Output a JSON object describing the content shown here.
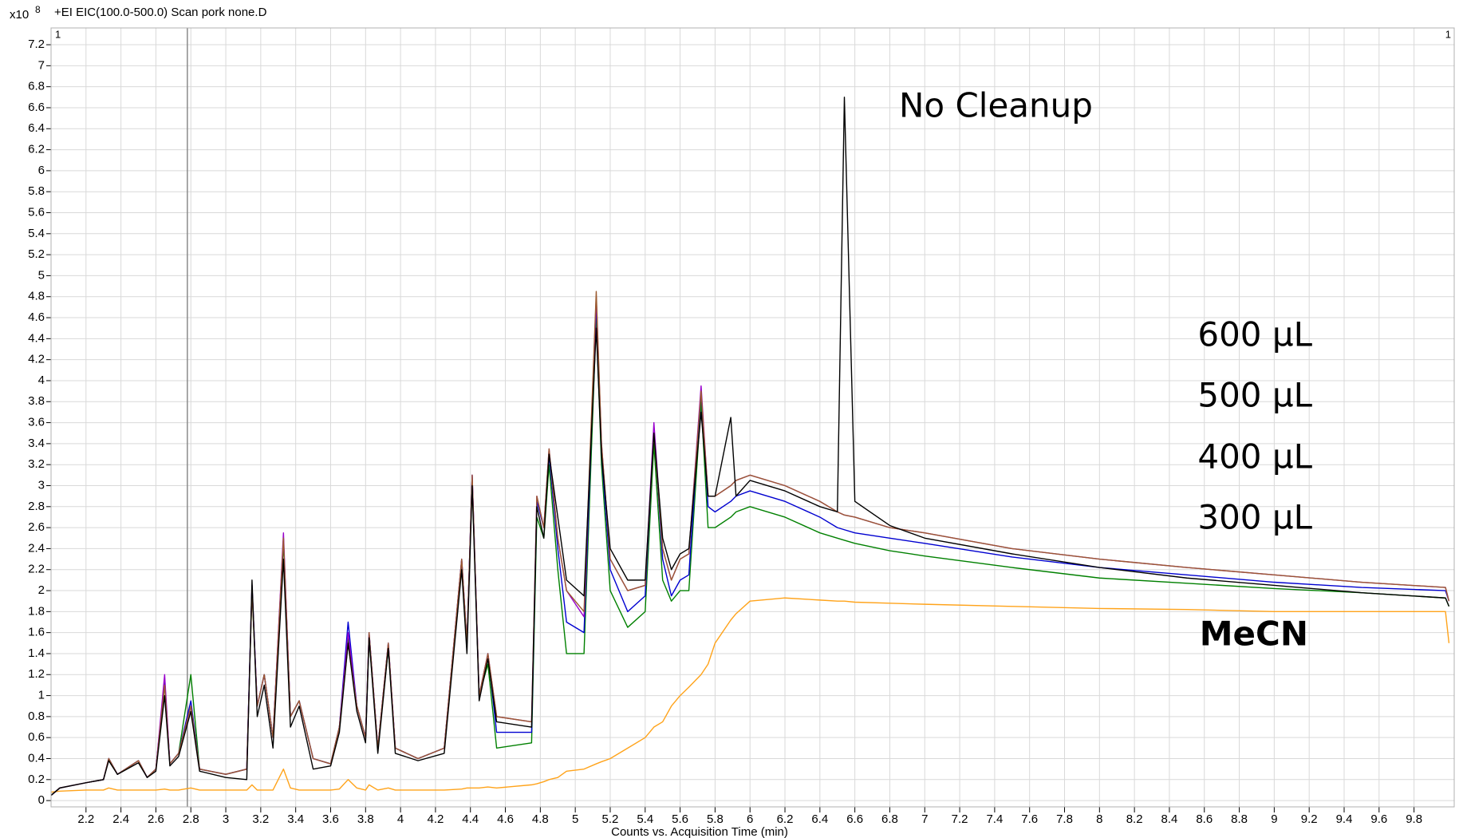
{
  "chart_data": {
    "type": "line",
    "title": "+EI EIC(100.0-500.0) Scan pork none.D",
    "y_multiplier": {
      "base": "x10",
      "exponent": 8
    },
    "pane_labels": [
      "1",
      "1"
    ],
    "x_label": "Counts vs. Acquisition Time (min)",
    "cursor_x": 2.78,
    "grid": true,
    "xlim": [
      2.0,
      10.03
    ],
    "ylim": [
      -0.06,
      7.36
    ],
    "xticks": [
      2.2,
      2.4,
      2.6,
      2.8,
      3,
      3.2,
      3.4,
      3.6,
      3.8,
      4,
      4.2,
      4.4,
      4.6,
      4.8,
      5,
      5.2,
      5.4,
      5.6,
      5.8,
      6,
      6.2,
      6.4,
      6.6,
      6.8,
      7,
      7.2,
      7.4,
      7.6,
      7.8,
      8,
      8.2,
      8.4,
      8.6,
      8.8,
      9,
      9.2,
      9.4,
      9.6,
      9.8
    ],
    "yticks": [
      0,
      0.2,
      0.4,
      0.6,
      0.8,
      1,
      1.2,
      1.4,
      1.6,
      1.8,
      2,
      2.2,
      2.4,
      2.6,
      2.8,
      3,
      3.2,
      3.4,
      3.6,
      3.8,
      4,
      4.2,
      4.4,
      4.6,
      4.8,
      5,
      5.2,
      5.4,
      5.6,
      5.8,
      6,
      6.2,
      6.4,
      6.6,
      6.8,
      7,
      7.2
    ],
    "x": [
      2.0,
      2.05,
      2.2,
      2.3,
      2.33,
      2.38,
      2.5,
      2.55,
      2.6,
      2.65,
      2.68,
      2.73,
      2.8,
      2.85,
      3.0,
      3.12,
      3.15,
      3.18,
      3.22,
      3.27,
      3.33,
      3.37,
      3.42,
      3.5,
      3.6,
      3.65,
      3.7,
      3.75,
      3.8,
      3.82,
      3.87,
      3.93,
      3.97,
      4.1,
      4.25,
      4.35,
      4.38,
      4.41,
      4.45,
      4.5,
      4.55,
      4.75,
      4.78,
      4.82,
      4.85,
      4.9,
      4.95,
      5.05,
      5.12,
      5.15,
      5.2,
      5.3,
      5.4,
      5.45,
      5.5,
      5.55,
      5.6,
      5.65,
      5.72,
      5.76,
      5.8,
      5.89,
      5.92,
      6.0,
      6.2,
      6.4,
      6.5,
      6.54,
      6.6,
      6.8,
      7.0,
      7.5,
      8.0,
      8.5,
      9.0,
      9.5,
      9.98,
      10.0
    ],
    "series": [
      {
        "name": "MeCN",
        "color": "#ffa31a",
        "label_color": "#f5b800",
        "values": [
          0.08,
          0.09,
          0.1,
          0.1,
          0.12,
          0.1,
          0.1,
          0.1,
          0.1,
          0.11,
          0.1,
          0.1,
          0.12,
          0.1,
          0.1,
          0.1,
          0.15,
          0.1,
          0.1,
          0.1,
          0.3,
          0.12,
          0.1,
          0.1,
          0.1,
          0.11,
          0.2,
          0.12,
          0.1,
          0.15,
          0.1,
          0.12,
          0.1,
          0.1,
          0.1,
          0.11,
          0.12,
          0.12,
          0.12,
          0.13,
          0.12,
          0.15,
          0.16,
          0.18,
          0.2,
          0.22,
          0.28,
          0.3,
          0.35,
          0.37,
          0.4,
          0.5,
          0.6,
          0.7,
          0.75,
          0.9,
          1.0,
          1.08,
          1.2,
          1.3,
          1.5,
          1.72,
          1.78,
          1.9,
          1.93,
          1.91,
          1.9,
          1.9,
          1.89,
          1.88,
          1.87,
          1.85,
          1.83,
          1.82,
          1.8,
          1.8,
          1.8,
          1.5
        ]
      },
      {
        "name": "300 µL",
        "color": "#008000",
        "label_color": "#138a13",
        "values": [
          0.05,
          0.12,
          0.17,
          0.2,
          0.4,
          0.25,
          0.38,
          0.22,
          0.3,
          1.1,
          0.35,
          0.45,
          1.2,
          0.3,
          0.25,
          0.3,
          2.0,
          0.9,
          1.2,
          0.6,
          2.45,
          0.8,
          0.95,
          0.4,
          0.35,
          0.7,
          1.55,
          0.9,
          0.6,
          1.55,
          0.5,
          1.45,
          0.5,
          0.4,
          0.5,
          2.25,
          1.5,
          3.05,
          1.0,
          1.3,
          0.5,
          0.55,
          2.7,
          2.5,
          3.2,
          2.2,
          1.4,
          1.4,
          4.6,
          3.2,
          2.0,
          1.65,
          1.8,
          3.4,
          2.1,
          1.9,
          2.0,
          2.0,
          3.8,
          2.6,
          2.6,
          2.7,
          2.75,
          2.8,
          2.7,
          2.55,
          2.5,
          2.48,
          2.45,
          2.38,
          2.33,
          2.22,
          2.12,
          2.07,
          2.02,
          1.98,
          1.93,
          1.85
        ]
      },
      {
        "name": "400 µL",
        "color": "#0000d0",
        "label_color": "#1f1fc8",
        "values": [
          0.05,
          0.12,
          0.17,
          0.2,
          0.4,
          0.25,
          0.38,
          0.22,
          0.3,
          1.15,
          0.35,
          0.45,
          0.95,
          0.3,
          0.25,
          0.3,
          2.05,
          0.9,
          1.2,
          0.6,
          2.5,
          0.8,
          0.95,
          0.4,
          0.35,
          0.7,
          1.7,
          0.9,
          0.6,
          1.6,
          0.5,
          1.5,
          0.5,
          0.4,
          0.5,
          2.3,
          1.5,
          3.1,
          1.0,
          1.4,
          0.65,
          0.65,
          2.85,
          2.6,
          3.3,
          2.4,
          1.7,
          1.6,
          4.75,
          3.3,
          2.2,
          1.8,
          1.95,
          3.55,
          2.3,
          1.95,
          2.1,
          2.15,
          3.9,
          2.8,
          2.75,
          2.85,
          2.9,
          2.95,
          2.85,
          2.7,
          2.6,
          2.58,
          2.55,
          2.5,
          2.45,
          2.32,
          2.22,
          2.15,
          2.08,
          2.03,
          2.0,
          1.9
        ]
      },
      {
        "name": "500 µL",
        "color": "#9900cc",
        "label_color": "#9a10c8",
        "values": [
          0.05,
          0.12,
          0.17,
          0.2,
          0.4,
          0.25,
          0.38,
          0.22,
          0.3,
          1.2,
          0.35,
          0.45,
          0.9,
          0.3,
          0.25,
          0.3,
          2.05,
          0.9,
          1.2,
          0.6,
          2.55,
          0.8,
          0.95,
          0.4,
          0.35,
          0.7,
          1.6,
          0.9,
          0.6,
          1.6,
          0.5,
          1.5,
          0.5,
          0.4,
          0.5,
          2.3,
          1.5,
          3.1,
          1.0,
          1.4,
          0.8,
          0.75,
          2.9,
          2.6,
          3.35,
          2.5,
          2.0,
          1.75,
          4.8,
          3.4,
          2.3,
          2.0,
          2.05,
          3.6,
          2.4,
          2.1,
          2.3,
          2.35,
          3.95,
          2.9,
          2.9,
          3.0,
          3.05,
          3.1,
          3.0,
          2.85,
          2.75,
          2.72,
          2.7,
          2.6,
          2.55,
          2.4,
          2.3,
          2.22,
          2.15,
          2.08,
          2.03,
          1.9
        ]
      },
      {
        "name": "600 µL",
        "color": "#9b5a2e",
        "label_color": "#9b6535",
        "values": [
          0.05,
          0.12,
          0.17,
          0.2,
          0.4,
          0.25,
          0.38,
          0.22,
          0.3,
          1.1,
          0.35,
          0.45,
          0.9,
          0.3,
          0.25,
          0.3,
          2.0,
          0.9,
          1.2,
          0.6,
          2.5,
          0.8,
          0.95,
          0.4,
          0.35,
          0.7,
          1.5,
          0.9,
          0.6,
          1.6,
          0.5,
          1.5,
          0.5,
          0.4,
          0.5,
          2.3,
          1.5,
          3.1,
          1.0,
          1.4,
          0.8,
          0.75,
          2.9,
          2.6,
          3.35,
          2.5,
          2.0,
          1.8,
          4.85,
          3.4,
          2.3,
          2.0,
          2.05,
          3.5,
          2.4,
          2.1,
          2.3,
          2.35,
          3.9,
          2.9,
          2.9,
          3.0,
          3.05,
          3.1,
          3.0,
          2.85,
          2.75,
          2.72,
          2.7,
          2.6,
          2.55,
          2.4,
          2.3,
          2.22,
          2.15,
          2.08,
          2.03,
          1.9
        ]
      },
      {
        "name": "No Cleanup",
        "color": "#000000",
        "label_color": "#000000",
        "values": [
          0.05,
          0.12,
          0.17,
          0.2,
          0.38,
          0.25,
          0.36,
          0.22,
          0.28,
          1.0,
          0.33,
          0.42,
          0.85,
          0.28,
          0.22,
          0.2,
          2.1,
          0.8,
          1.1,
          0.5,
          2.3,
          0.7,
          0.9,
          0.3,
          0.33,
          0.65,
          1.5,
          0.85,
          0.55,
          1.55,
          0.45,
          1.45,
          0.45,
          0.38,
          0.45,
          2.2,
          1.4,
          3.0,
          0.95,
          1.35,
          0.75,
          0.7,
          2.8,
          2.5,
          3.3,
          2.7,
          2.1,
          1.95,
          4.5,
          3.3,
          2.4,
          2.1,
          2.1,
          3.5,
          2.5,
          2.2,
          2.35,
          2.4,
          3.7,
          2.9,
          2.9,
          3.65,
          2.9,
          3.05,
          2.95,
          2.8,
          2.75,
          6.7,
          2.85,
          2.62,
          2.5,
          2.35,
          2.22,
          2.12,
          2.05,
          1.98,
          1.93,
          1.85
        ]
      }
    ]
  }
}
